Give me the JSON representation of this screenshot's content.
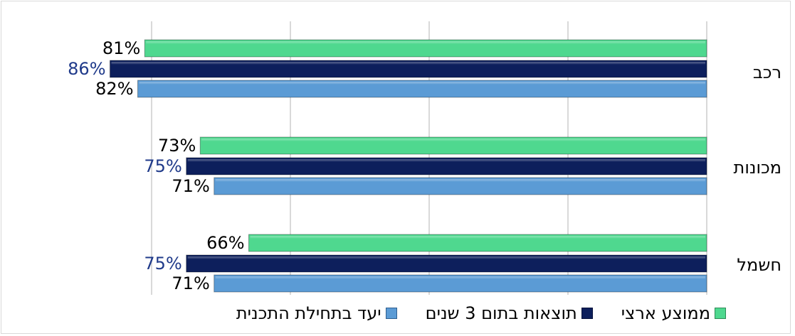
{
  "chart_data": {
    "type": "bar",
    "orientation": "horizontal-rtl",
    "categories": [
      "רכב",
      "מכונות",
      "חשמל"
    ],
    "series": [
      {
        "name": "ממוצע ארצי",
        "values": [
          81,
          73,
          66
        ],
        "labels": [
          "81%",
          "73%",
          "66%"
        ],
        "color": "#4fd88f"
      },
      {
        "name": "תוצאות בתום 3 שנים",
        "values": [
          86,
          75,
          75
        ],
        "labels": [
          "86%",
          "75%",
          "75%"
        ],
        "color": "#0d1f5c",
        "label_color": "#1f3a8a"
      },
      {
        "name": "יעד בתחילת התכנית",
        "values": [
          82,
          71,
          71
        ],
        "labels": [
          "82%",
          "71%",
          "71%"
        ],
        "color": "#5b9bd5"
      }
    ],
    "xlim": [
      0,
      90
    ],
    "grid": true,
    "legend_position": "bottom"
  },
  "legend": [
    {
      "label": "ממוצע ארצי",
      "color": "#4fd88f"
    },
    {
      "label": "תוצאות בתום 3 שנים",
      "color": "#0d1f5c"
    },
    {
      "label": "יעד בתחילת התכנית",
      "color": "#5b9bd5"
    }
  ]
}
